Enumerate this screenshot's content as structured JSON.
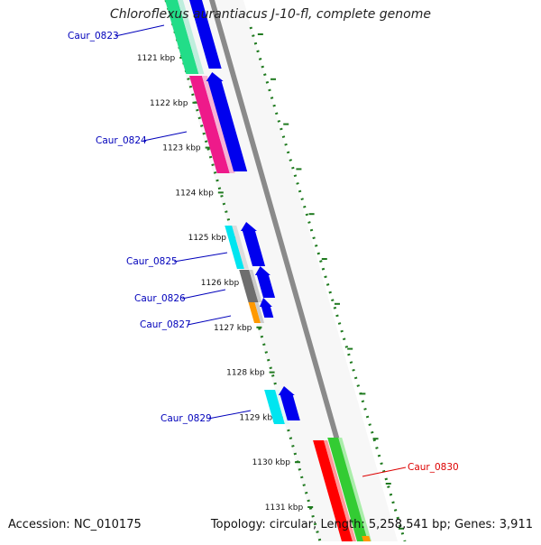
{
  "title": "Chloroflexus aurantiacus J-10-fl, complete genome",
  "footer": {
    "accession": "Accession: NC_010175",
    "stats": "Topology: circular; Length: 5,258,541 bp; Genes: 3,911"
  },
  "colors": {
    "tick": "#1f7a1f",
    "gene_label": "#0000bb",
    "highlight_label": "#dd0000",
    "backbone": "#8a8a8a"
  },
  "kbp_labels": [
    "1121 kbp",
    "1122 kbp",
    "1123 kbp",
    "1124 kbp",
    "1125 kbp",
    "1126 kbp",
    "1127 kbp",
    "1128 kbp",
    "1129 kbp",
    "1130 kbp",
    "1131 kbp"
  ],
  "gene_labels": [
    {
      "text": "Caur_0823",
      "color": "blue"
    },
    {
      "text": "Caur_0824",
      "color": "blue"
    },
    {
      "text": "Caur_0825",
      "color": "blue"
    },
    {
      "text": "Caur_0826",
      "color": "blue"
    },
    {
      "text": "Caur_0827",
      "color": "blue"
    },
    {
      "text": "Caur_0829",
      "color": "blue"
    },
    {
      "text": "Caur_0830",
      "color": "red"
    }
  ]
}
